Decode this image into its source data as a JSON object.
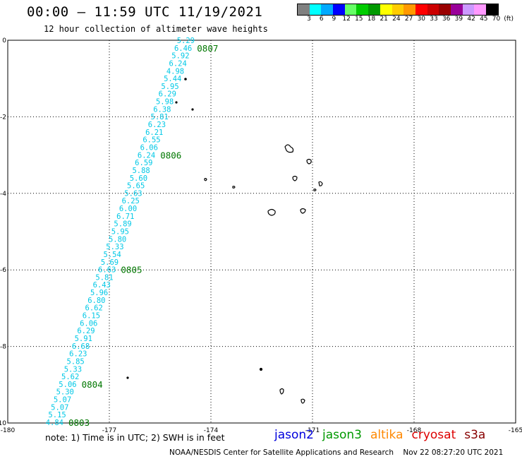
{
  "header": {
    "title": "00:00 – 11:59 UTC 11/19/2021",
    "subtitle": "12 hour collection of altimeter wave heights"
  },
  "colorbar": {
    "colors": [
      "#808080",
      "#00ffff",
      "#00aaff",
      "#0000ff",
      "#66ff66",
      "#00cc00",
      "#009900",
      "#ffff00",
      "#ffcc00",
      "#ff9900",
      "#ff0000",
      "#cc0000",
      "#990000",
      "#990099",
      "#cc99ff",
      "#ff99ff",
      "#000000"
    ],
    "labels": [
      "3",
      "6",
      "9",
      "12",
      "15",
      "18",
      "21",
      "24",
      "27",
      "30",
      "33",
      "36",
      "39",
      "42",
      "45",
      "70",
      "(ft)"
    ]
  },
  "map": {
    "x_ticks": [
      "-180",
      "-177",
      "-174",
      "-171",
      "-168",
      "-165"
    ],
    "y_ticks": [
      "0",
      "-2",
      "-4",
      "-6",
      "-8",
      "-10"
    ],
    "xlim": [
      -180,
      -165
    ],
    "ylim": [
      -10,
      0
    ],
    "swh_color": "#00c8e6",
    "time_color": "#007700",
    "swh_values": [
      "5.29",
      "6.46",
      "5.92",
      "6.24",
      "4.98",
      "5.44",
      "5.95",
      "6.29",
      "5.98",
      "6.38",
      "5.81",
      "6.23",
      "6.21",
      "6.55",
      "6.06",
      "6.24",
      "6.59",
      "5.88",
      "5.60",
      "5.65",
      "5.63",
      "6.25",
      "6.00",
      "6.71",
      "5.89",
      "5.95",
      "5.80",
      "5.33",
      "5.54",
      "5.69",
      "6.63",
      "5.81",
      "6.43",
      "5.96",
      "6.80",
      "6.62",
      "6.15",
      "6.06",
      "6.29",
      "5.91",
      "6.68",
      "6.23",
      "5.85",
      "5.33",
      "5.62",
      "5.06",
      "5.30",
      "5.07",
      "5.07",
      "5.15",
      "4.84"
    ],
    "time_labels": [
      {
        "text": "0807",
        "index": 1
      },
      {
        "text": "0806",
        "index": 15
      },
      {
        "text": "0805",
        "index": 30
      },
      {
        "text": "0804",
        "index": 45
      },
      {
        "text": "0803",
        "index": 50
      }
    ]
  },
  "note": "note:  1) Time is in UTC;  2) SWH is in feet",
  "legend": [
    {
      "name": "jason2",
      "color": "#0000dd"
    },
    {
      "name": "jason3",
      "color": "#009900"
    },
    {
      "name": "altika",
      "color": "#ff8800"
    },
    {
      "name": "cryosat",
      "color": "#dd0000"
    },
    {
      "name": "s3a",
      "color": "#880000"
    }
  ],
  "footer": "NOAA/NESDIS Center for Satellite Applications and Research    Nov 22 08:27:20 UTC 2021"
}
